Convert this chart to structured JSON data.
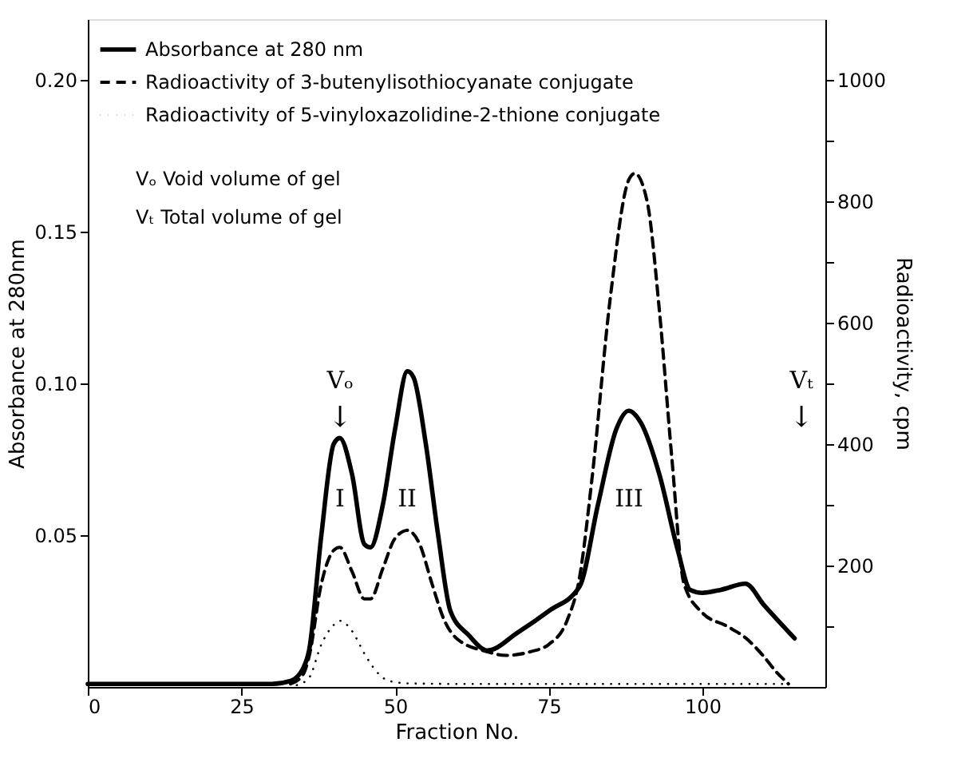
{
  "chart_data": {
    "type": "line",
    "xlabel": "Fraction No.",
    "ylabel": "Absorbance at 280nm",
    "y2label": "Radioactivity,   cpm",
    "xlim": [
      0,
      120
    ],
    "xticks": [
      0,
      25,
      50,
      75,
      100
    ],
    "ylim": [
      0,
      0.22
    ],
    "yticks": [
      0.05,
      {
        "value": 0.1,
        "label": "0.10"
      },
      0.15,
      {
        "value": 0.2,
        "label": "0.20"
      }
    ],
    "y2lim": [
      0,
      1100
    ],
    "y2ticks": [
      {
        "value": 100,
        "label": null
      },
      200,
      {
        "value": 300,
        "label": null
      },
      400,
      {
        "value": 500,
        "label": null
      },
      600,
      {
        "value": 700,
        "label": null
      },
      800,
      {
        "value": 900,
        "label": null
      },
      1000
    ],
    "grid": false,
    "legend": "top left",
    "series": [
      {
        "name": "Absorbance at 280 nm",
        "color": "#000000",
        "line_style": "solid",
        "x": [
          0,
          10,
          20,
          30,
          33,
          35,
          36,
          38,
          40,
          41,
          43,
          45,
          46,
          48,
          50,
          52,
          53,
          55,
          57,
          59,
          62,
          65,
          70,
          75,
          80,
          83,
          86,
          88,
          90,
          93,
          96,
          98,
          100,
          103,
          107,
          110,
          115
        ],
        "values": [
          0.001,
          0.001,
          0.001,
          0.001,
          0.002,
          0.006,
          0.012,
          0.05,
          0.08,
          0.082,
          0.07,
          0.047,
          0.046,
          0.06,
          0.085,
          0.104,
          0.102,
          0.08,
          0.05,
          0.025,
          0.017,
          0.012,
          0.018,
          0.025,
          0.033,
          0.06,
          0.085,
          0.091,
          0.087,
          0.07,
          0.045,
          0.032,
          0.031,
          0.032,
          0.034,
          0.027,
          0.016
        ]
      },
      {
        "name": "Radioactivity of 3-butenylisothiocyanate conjugate",
        "color": "#000000",
        "line_style": "dashed",
        "axis": "y2",
        "x": [
          33,
          35,
          36,
          38,
          40,
          41,
          43,
          45,
          46,
          48,
          50,
          52,
          54,
          56,
          58,
          60,
          65,
          68,
          72,
          75,
          78,
          80,
          82,
          85,
          88,
          89,
          91,
          93,
          95,
          97,
          100,
          104,
          107,
          110,
          112,
          114
        ],
        "values": [
          5,
          20,
          50,
          170,
          225,
          230,
          190,
          145,
          145,
          195,
          245,
          258,
          235,
          170,
          110,
          80,
          58,
          52,
          58,
          70,
          110,
          180,
          340,
          640,
          835,
          846,
          800,
          620,
          380,
          170,
          122,
          100,
          81,
          50,
          25,
          5
        ]
      },
      {
        "name": "Radioactivity of 5-vinyloxazolidine-2-thione conjugate",
        "color": "#000000",
        "line_style": "dotted",
        "axis": "y2",
        "x": [
          34,
          36,
          38,
          40,
          41,
          43,
          45,
          47,
          49,
          52,
          60,
          70,
          80,
          90,
          100,
          110,
          114
        ],
        "values": [
          3,
          15,
          70,
          102,
          109,
          92,
          55,
          25,
          10,
          6,
          5,
          5,
          5,
          5,
          5,
          5,
          5
        ]
      }
    ],
    "annotations": [
      "I",
      "II",
      "III",
      "Vₒ",
      "↓",
      "Vₜ",
      "↓",
      "Vₒ   Void volume of gel",
      "Vₜ   Total volume of gel"
    ]
  }
}
